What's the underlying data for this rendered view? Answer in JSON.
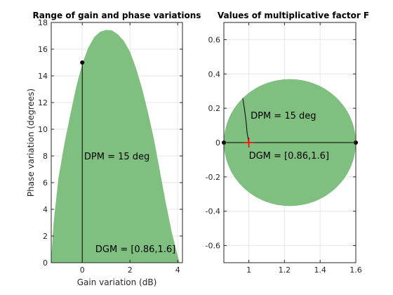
{
  "chart_data": [
    {
      "type": "area",
      "title": "Range of gain and phase variations",
      "xlabel": "Gain variation (dB)",
      "ylabel": "Phase variation (degrees)",
      "xlim": [
        -1.3,
        4.2
      ],
      "ylim": [
        0,
        18
      ],
      "xticks": [
        0,
        2,
        4
      ],
      "yticks": [
        0,
        2,
        4,
        6,
        8,
        10,
        12,
        14,
        16,
        18
      ],
      "grid": true,
      "fill_color": "#7fbf7f",
      "region_boundary": {
        "x": [
          -1.31,
          -1.2,
          -1.0,
          -0.75,
          -0.5,
          -0.25,
          0,
          0.25,
          0.5,
          0.75,
          1.0,
          1.25,
          1.5,
          1.75,
          2.0,
          2.25,
          2.5,
          2.75,
          3.0,
          3.25,
          3.5,
          3.75,
          4.0,
          4.08
        ],
        "y": [
          0,
          3.0,
          6.3,
          8.9,
          11.1,
          13.2,
          14.9,
          16.1,
          16.9,
          17.3,
          17.45,
          17.4,
          17.1,
          16.6,
          15.8,
          14.6,
          13.1,
          11.3,
          9.3,
          6.9,
          4.5,
          2.3,
          0.5,
          0
        ]
      },
      "marker": {
        "x": 0,
        "y": 15
      },
      "annotations": [
        {
          "text": "DPM = 15 deg",
          "x": 0.08,
          "y": 8
        },
        {
          "text": "DGM = [0.86,1.6]",
          "x": 0.55,
          "y": 0.8
        }
      ]
    },
    {
      "type": "area",
      "title": "Values of multiplicative factor F",
      "xlim": [
        0.86,
        1.6
      ],
      "ylim": [
        -0.7,
        0.7
      ],
      "xticks": [
        1,
        1.2,
        1.4,
        1.6
      ],
      "yticks": [
        -0.6,
        -0.4,
        -0.2,
        0,
        0.2,
        0.4,
        0.6
      ],
      "grid": true,
      "fill_color": "#7fbf7f",
      "disk": {
        "center": [
          1.23,
          0
        ],
        "radius": 0.37
      },
      "segment": {
        "x": [
          0.86,
          1.6
        ],
        "y": [
          0,
          0
        ]
      },
      "arc_points": {
        "x": [
          0.966,
          0.975,
          0.985,
          0.99,
          1.0
        ],
        "y": [
          0.259,
          0.2,
          0.12,
          0.06,
          0
        ]
      },
      "cross": {
        "x": 1,
        "y": 0
      },
      "annotations": [
        {
          "text": "DPM = 15 deg",
          "x": 1.01,
          "y": 0.16
        },
        {
          "text": "DGM = [0.86,1.6]",
          "x": 1.0,
          "y": -0.045
        }
      ]
    }
  ]
}
